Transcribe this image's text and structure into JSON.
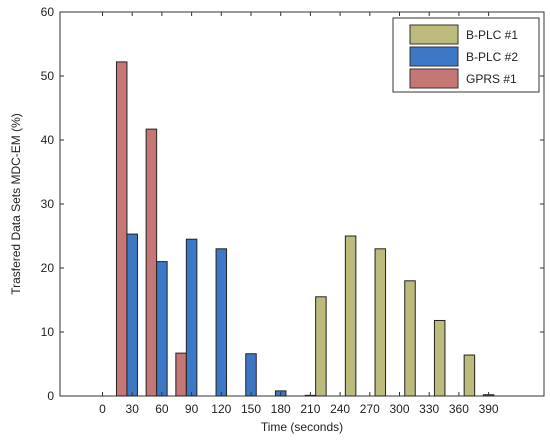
{
  "chart_data": {
    "type": "bar",
    "xlabel": "Time (seconds)",
    "ylabel": "Trasfered Data Sets MDC-EM (%)",
    "ylim": [
      0,
      60
    ],
    "yticks": [
      0,
      10,
      20,
      30,
      40,
      50,
      60
    ],
    "categories": [
      "0",
      "30",
      "60",
      "90",
      "120",
      "150",
      "180",
      "210",
      "240",
      "270",
      "300",
      "330",
      "360",
      "390"
    ],
    "grid": false,
    "legend_position": "top-right",
    "series": [
      {
        "name": "B-PLC #1",
        "color": "#bdbb7b",
        "values": [
          0,
          0,
          0,
          0,
          0,
          0,
          0,
          15.5,
          25,
          23,
          18,
          11.8,
          6.4,
          0
        ]
      },
      {
        "name": "B-PLC #2",
        "color": "#3c78c6",
        "values": [
          0,
          25.3,
          21,
          24.5,
          23,
          6.6,
          0.8,
          0.1,
          0,
          0,
          0,
          0,
          0,
          0.2
        ]
      },
      {
        "name": "GPRS #1",
        "color": "#c47775",
        "values": [
          0,
          52.2,
          41.7,
          6.7,
          0,
          0,
          0,
          0,
          0,
          0,
          0,
          0,
          0,
          0
        ]
      }
    ]
  }
}
